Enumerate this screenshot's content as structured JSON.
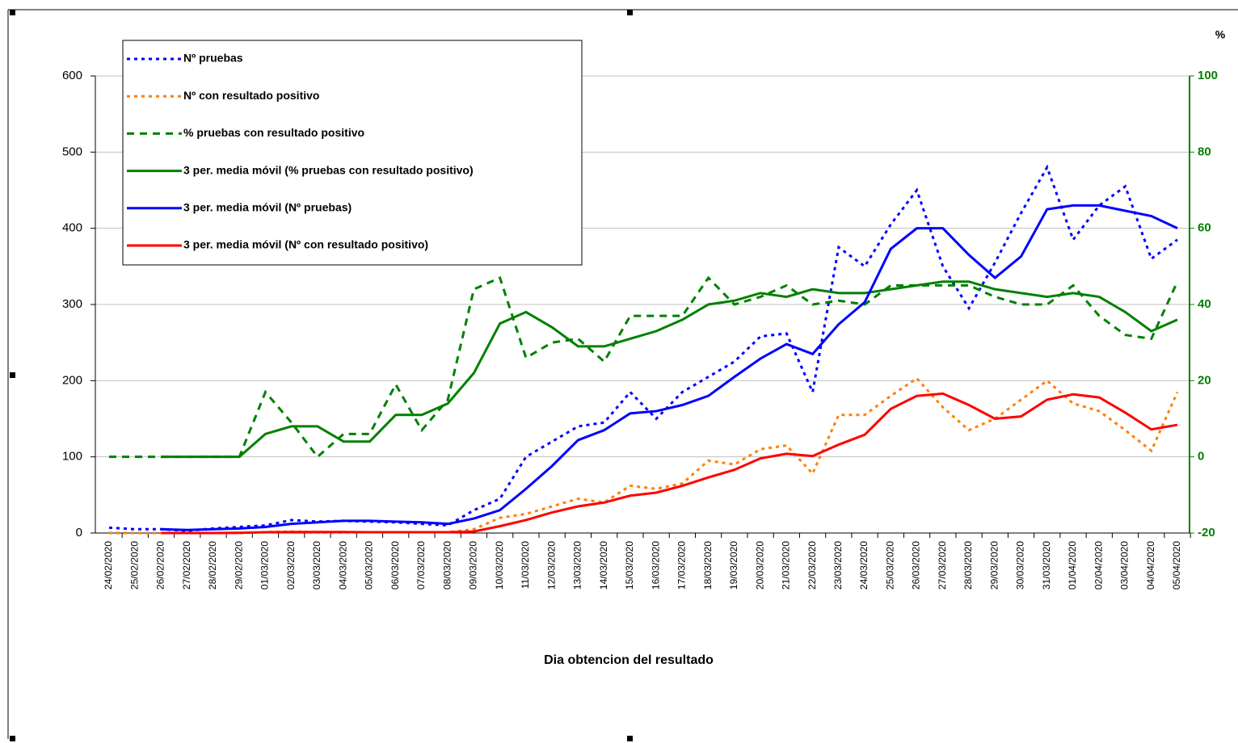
{
  "chart_data": {
    "type": "line",
    "x_label": "Dia obtencion del resultado",
    "y2_label": "%",
    "categories": [
      "24/02/2020",
      "25/02/2020",
      "26/02/2020",
      "27/02/2020",
      "28/02/2020",
      "29/02/2020",
      "01/03/2020",
      "02/03/2020",
      "03/03/2020",
      "04/03/2020",
      "05/03/2020",
      "06/03/2020",
      "07/03/2020",
      "08/03/2020",
      "09/03/2020",
      "10/03/2020",
      "11/03/2020",
      "12/03/2020",
      "13/03/2020",
      "14/03/2020",
      "15/03/2020",
      "16/03/2020",
      "17/03/2020",
      "18/03/2020",
      "19/03/2020",
      "20/03/2020",
      "21/03/2020",
      "22/03/2020",
      "23/03/2020",
      "24/03/2020",
      "25/03/2020",
      "26/03/2020",
      "27/03/2020",
      "28/03/2020",
      "29/03/2020",
      "30/03/2020",
      "31/03/2020",
      "01/04/2020",
      "02/04/2020",
      "03/04/2020",
      "04/04/2020",
      "05/04/2020"
    ],
    "ylim": [
      0,
      600
    ],
    "yticks": [
      0,
      100,
      200,
      300,
      400,
      500,
      600
    ],
    "y2lim": [
      -20,
      100
    ],
    "y2ticks": [
      -20,
      0,
      20,
      40,
      60,
      80,
      100
    ],
    "grid": true,
    "legend": "upper left",
    "series": [
      {
        "name": "Nº pruebas",
        "color": "#0000ff",
        "style": "dotted",
        "values": [
          7,
          5,
          5,
          3,
          6,
          8,
          10,
          17,
          15,
          16,
          15,
          14,
          12,
          10,
          30,
          45,
          100,
          120,
          140,
          145,
          185,
          150,
          185,
          205,
          225,
          258,
          262,
          185,
          375,
          350,
          405,
          450,
          350,
          295,
          355,
          420,
          480,
          385,
          430,
          455,
          360,
          385
        ]
      },
      {
        "name": "Nº con resultado positivo",
        "color": "#ff8000",
        "style": "dotted",
        "values": [
          0,
          0,
          0,
          0,
          0,
          0,
          1,
          2,
          1,
          1,
          1,
          1,
          1,
          1,
          5,
          20,
          25,
          35,
          45,
          40,
          62,
          58,
          65,
          95,
          90,
          110,
          115,
          78,
          155,
          155,
          180,
          203,
          165,
          135,
          150,
          175,
          200,
          170,
          160,
          135,
          108,
          185
        ]
      },
      {
        "name": "% pruebas con resultado positivo",
        "color": "#008000",
        "style": "dashed",
        "axis": "y2",
        "values": [
          0,
          0,
          0,
          0,
          0,
          0,
          17,
          9,
          0,
          6,
          6,
          19,
          7,
          15,
          44,
          47,
          26,
          30,
          31,
          25,
          37,
          37,
          37,
          47,
          40,
          42,
          45,
          40,
          41,
          40,
          45,
          45,
          45,
          45,
          42,
          40,
          40,
          45,
          37,
          32,
          31,
          46
        ]
      },
      {
        "name": "3 per. media móvil (% pruebas con resultado positivo)",
        "color": "#008000",
        "style": "solid",
        "axis": "y2",
        "values": [
          null,
          null,
          0,
          0,
          0,
          0,
          6,
          8,
          8,
          4,
          4,
          11,
          11,
          14,
          22,
          35,
          38,
          34,
          29,
          29,
          31,
          33,
          36,
          40,
          41,
          43,
          42,
          44,
          43,
          43,
          44,
          45,
          46,
          46,
          44,
          43,
          42,
          43,
          42,
          38,
          33,
          36
        ]
      },
      {
        "name": "3 per. media móvil (Nº pruebas)",
        "color": "#0000ff",
        "style": "solid",
        "values": [
          null,
          null,
          5,
          4,
          5,
          6,
          8,
          12,
          14,
          16,
          16,
          15,
          14,
          12,
          19,
          30,
          58,
          88,
          122,
          135,
          157,
          160,
          168,
          180,
          205,
          229,
          248,
          235,
          274,
          303,
          373,
          400,
          400,
          365,
          335,
          363,
          425,
          430,
          430,
          423,
          416,
          400
        ]
      },
      {
        "name": "3 per. media móvil (Nº con resultado positivo)",
        "color": "#ff0000",
        "style": "solid",
        "values": [
          null,
          null,
          0,
          0,
          0,
          0.3,
          1,
          1.3,
          1.3,
          1.3,
          1,
          1,
          1,
          1,
          2,
          9,
          17,
          27,
          35,
          40,
          49,
          53,
          62,
          73,
          83,
          98,
          104,
          101,
          116,
          129,
          163,
          180,
          183,
          168,
          150,
          153,
          175,
          182,
          178,
          158,
          136,
          142
        ]
      }
    ]
  }
}
